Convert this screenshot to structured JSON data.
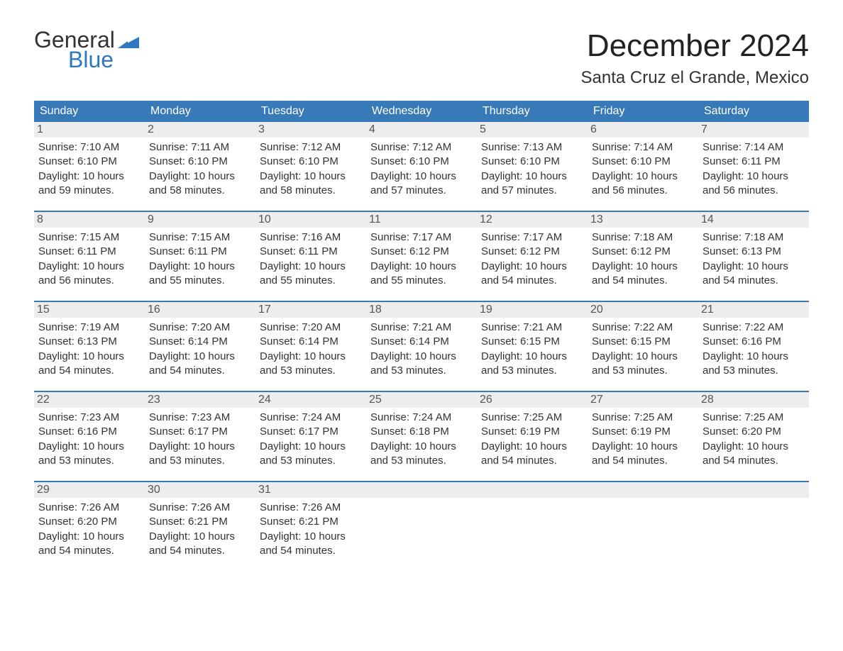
{
  "logo": {
    "text_general": "General",
    "text_blue": "Blue",
    "wedge_color": "#2f78bf",
    "general_color": "#333333",
    "blue_color": "#2f78bf"
  },
  "header": {
    "month_title": "December 2024",
    "location": "Santa Cruz el Grande, Mexico"
  },
  "styling": {
    "header_bg": "#3879b8",
    "header_text_color": "#ffffff",
    "daynum_bg": "#ededed",
    "body_text_color": "#333333",
    "week_sep_color": "#3879b8",
    "font_family": "Arial, Helvetica, sans-serif",
    "month_title_fontsize": 44,
    "location_fontsize": 24,
    "dayname_fontsize": 16,
    "body_fontsize": 15
  },
  "day_names": [
    "Sunday",
    "Monday",
    "Tuesday",
    "Wednesday",
    "Thursday",
    "Friday",
    "Saturday"
  ],
  "weeks": [
    [
      {
        "num": "1",
        "sunrise": "Sunrise: 7:10 AM",
        "sunset": "Sunset: 6:10 PM",
        "dl1": "Daylight: 10 hours",
        "dl2": "and 59 minutes."
      },
      {
        "num": "2",
        "sunrise": "Sunrise: 7:11 AM",
        "sunset": "Sunset: 6:10 PM",
        "dl1": "Daylight: 10 hours",
        "dl2": "and 58 minutes."
      },
      {
        "num": "3",
        "sunrise": "Sunrise: 7:12 AM",
        "sunset": "Sunset: 6:10 PM",
        "dl1": "Daylight: 10 hours",
        "dl2": "and 58 minutes."
      },
      {
        "num": "4",
        "sunrise": "Sunrise: 7:12 AM",
        "sunset": "Sunset: 6:10 PM",
        "dl1": "Daylight: 10 hours",
        "dl2": "and 57 minutes."
      },
      {
        "num": "5",
        "sunrise": "Sunrise: 7:13 AM",
        "sunset": "Sunset: 6:10 PM",
        "dl1": "Daylight: 10 hours",
        "dl2": "and 57 minutes."
      },
      {
        "num": "6",
        "sunrise": "Sunrise: 7:14 AM",
        "sunset": "Sunset: 6:10 PM",
        "dl1": "Daylight: 10 hours",
        "dl2": "and 56 minutes."
      },
      {
        "num": "7",
        "sunrise": "Sunrise: 7:14 AM",
        "sunset": "Sunset: 6:11 PM",
        "dl1": "Daylight: 10 hours",
        "dl2": "and 56 minutes."
      }
    ],
    [
      {
        "num": "8",
        "sunrise": "Sunrise: 7:15 AM",
        "sunset": "Sunset: 6:11 PM",
        "dl1": "Daylight: 10 hours",
        "dl2": "and 56 minutes."
      },
      {
        "num": "9",
        "sunrise": "Sunrise: 7:15 AM",
        "sunset": "Sunset: 6:11 PM",
        "dl1": "Daylight: 10 hours",
        "dl2": "and 55 minutes."
      },
      {
        "num": "10",
        "sunrise": "Sunrise: 7:16 AM",
        "sunset": "Sunset: 6:11 PM",
        "dl1": "Daylight: 10 hours",
        "dl2": "and 55 minutes."
      },
      {
        "num": "11",
        "sunrise": "Sunrise: 7:17 AM",
        "sunset": "Sunset: 6:12 PM",
        "dl1": "Daylight: 10 hours",
        "dl2": "and 55 minutes."
      },
      {
        "num": "12",
        "sunrise": "Sunrise: 7:17 AM",
        "sunset": "Sunset: 6:12 PM",
        "dl1": "Daylight: 10 hours",
        "dl2": "and 54 minutes."
      },
      {
        "num": "13",
        "sunrise": "Sunrise: 7:18 AM",
        "sunset": "Sunset: 6:12 PM",
        "dl1": "Daylight: 10 hours",
        "dl2": "and 54 minutes."
      },
      {
        "num": "14",
        "sunrise": "Sunrise: 7:18 AM",
        "sunset": "Sunset: 6:13 PM",
        "dl1": "Daylight: 10 hours",
        "dl2": "and 54 minutes."
      }
    ],
    [
      {
        "num": "15",
        "sunrise": "Sunrise: 7:19 AM",
        "sunset": "Sunset: 6:13 PM",
        "dl1": "Daylight: 10 hours",
        "dl2": "and 54 minutes."
      },
      {
        "num": "16",
        "sunrise": "Sunrise: 7:20 AM",
        "sunset": "Sunset: 6:14 PM",
        "dl1": "Daylight: 10 hours",
        "dl2": "and 54 minutes."
      },
      {
        "num": "17",
        "sunrise": "Sunrise: 7:20 AM",
        "sunset": "Sunset: 6:14 PM",
        "dl1": "Daylight: 10 hours",
        "dl2": "and 53 minutes."
      },
      {
        "num": "18",
        "sunrise": "Sunrise: 7:21 AM",
        "sunset": "Sunset: 6:14 PM",
        "dl1": "Daylight: 10 hours",
        "dl2": "and 53 minutes."
      },
      {
        "num": "19",
        "sunrise": "Sunrise: 7:21 AM",
        "sunset": "Sunset: 6:15 PM",
        "dl1": "Daylight: 10 hours",
        "dl2": "and 53 minutes."
      },
      {
        "num": "20",
        "sunrise": "Sunrise: 7:22 AM",
        "sunset": "Sunset: 6:15 PM",
        "dl1": "Daylight: 10 hours",
        "dl2": "and 53 minutes."
      },
      {
        "num": "21",
        "sunrise": "Sunrise: 7:22 AM",
        "sunset": "Sunset: 6:16 PM",
        "dl1": "Daylight: 10 hours",
        "dl2": "and 53 minutes."
      }
    ],
    [
      {
        "num": "22",
        "sunrise": "Sunrise: 7:23 AM",
        "sunset": "Sunset: 6:16 PM",
        "dl1": "Daylight: 10 hours",
        "dl2": "and 53 minutes."
      },
      {
        "num": "23",
        "sunrise": "Sunrise: 7:23 AM",
        "sunset": "Sunset: 6:17 PM",
        "dl1": "Daylight: 10 hours",
        "dl2": "and 53 minutes."
      },
      {
        "num": "24",
        "sunrise": "Sunrise: 7:24 AM",
        "sunset": "Sunset: 6:17 PM",
        "dl1": "Daylight: 10 hours",
        "dl2": "and 53 minutes."
      },
      {
        "num": "25",
        "sunrise": "Sunrise: 7:24 AM",
        "sunset": "Sunset: 6:18 PM",
        "dl1": "Daylight: 10 hours",
        "dl2": "and 53 minutes."
      },
      {
        "num": "26",
        "sunrise": "Sunrise: 7:25 AM",
        "sunset": "Sunset: 6:19 PM",
        "dl1": "Daylight: 10 hours",
        "dl2": "and 54 minutes."
      },
      {
        "num": "27",
        "sunrise": "Sunrise: 7:25 AM",
        "sunset": "Sunset: 6:19 PM",
        "dl1": "Daylight: 10 hours",
        "dl2": "and 54 minutes."
      },
      {
        "num": "28",
        "sunrise": "Sunrise: 7:25 AM",
        "sunset": "Sunset: 6:20 PM",
        "dl1": "Daylight: 10 hours",
        "dl2": "and 54 minutes."
      }
    ],
    [
      {
        "num": "29",
        "sunrise": "Sunrise: 7:26 AM",
        "sunset": "Sunset: 6:20 PM",
        "dl1": "Daylight: 10 hours",
        "dl2": "and 54 minutes."
      },
      {
        "num": "30",
        "sunrise": "Sunrise: 7:26 AM",
        "sunset": "Sunset: 6:21 PM",
        "dl1": "Daylight: 10 hours",
        "dl2": "and 54 minutes."
      },
      {
        "num": "31",
        "sunrise": "Sunrise: 7:26 AM",
        "sunset": "Sunset: 6:21 PM",
        "dl1": "Daylight: 10 hours",
        "dl2": "and 54 minutes."
      },
      null,
      null,
      null,
      null
    ]
  ]
}
